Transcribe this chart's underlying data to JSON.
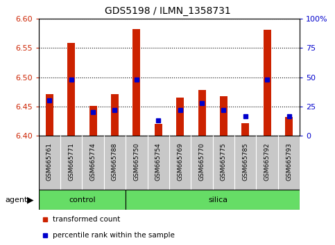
{
  "title": "GDS5198 / ILMN_1358731",
  "samples": [
    "GSM665761",
    "GSM665771",
    "GSM665774",
    "GSM665788",
    "GSM665750",
    "GSM665754",
    "GSM665769",
    "GSM665770",
    "GSM665775",
    "GSM665785",
    "GSM665792",
    "GSM665793"
  ],
  "groups": [
    "control",
    "control",
    "control",
    "control",
    "silica",
    "silica",
    "silica",
    "silica",
    "silica",
    "silica",
    "silica",
    "silica"
  ],
  "red_values": [
    6.471,
    6.558,
    6.451,
    6.471,
    6.582,
    6.421,
    6.465,
    6.478,
    6.468,
    6.422,
    6.581,
    6.432
  ],
  "blue_pct": [
    30,
    48,
    20,
    22,
    48,
    13,
    22,
    28,
    22,
    17,
    48,
    17
  ],
  "ylim_left": [
    6.4,
    6.6
  ],
  "ylim_right": [
    0,
    100
  ],
  "yticks_left": [
    6.4,
    6.45,
    6.5,
    6.55,
    6.6
  ],
  "yticks_right": [
    0,
    25,
    50,
    75,
    100
  ],
  "base_value": 6.4,
  "bar_color": "#cc2200",
  "blue_color": "#0000cc",
  "label_bg": "#c8c8c8",
  "green_color": "#66dd66",
  "agent_label": "agent",
  "legend_items": [
    "transformed count",
    "percentile rank within the sample"
  ],
  "n_control": 4,
  "n_samples": 12
}
